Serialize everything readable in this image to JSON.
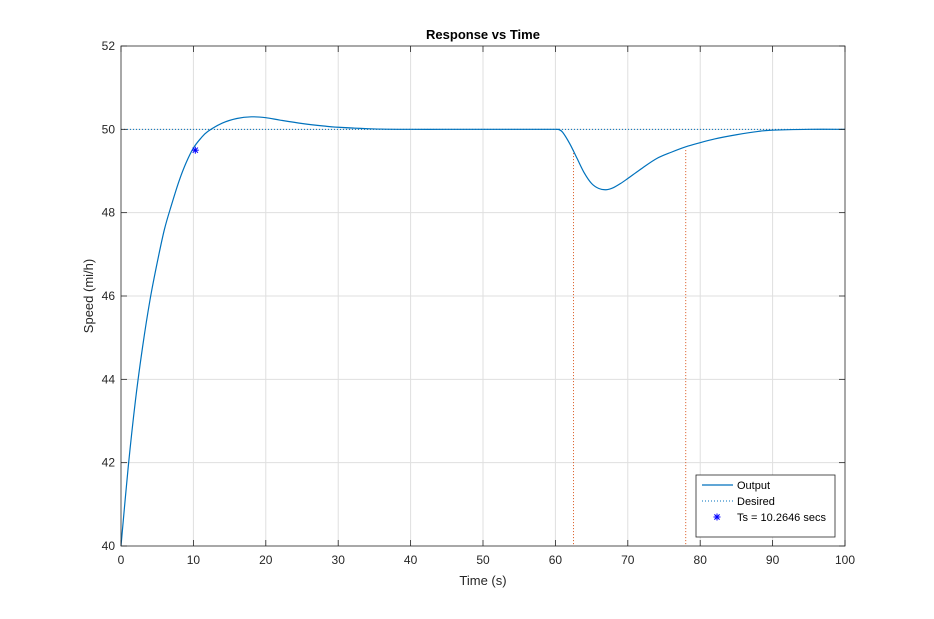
{
  "chart_data": {
    "type": "line",
    "title": "Response vs Time",
    "xlabel": "Time (s)",
    "ylabel": "Speed (mi/h)",
    "xlim": [
      0,
      100
    ],
    "ylim": [
      40,
      52
    ],
    "xticks": [
      0,
      10,
      20,
      30,
      40,
      50,
      60,
      70,
      80,
      90,
      100
    ],
    "yticks": [
      40,
      42,
      44,
      46,
      48,
      50,
      52
    ],
    "grid": true,
    "legend_position": "bottom-right",
    "series": [
      {
        "name": "Output",
        "style": "solid",
        "color": "#0072bd",
        "x": [
          0,
          1,
          2,
          3,
          4,
          5,
          6,
          7,
          8,
          9,
          10,
          11,
          12,
          14,
          16,
          18,
          20,
          22,
          25,
          28,
          30,
          35,
          40,
          45,
          50,
          55,
          60,
          60.5,
          61,
          62,
          63,
          64,
          65,
          66,
          67,
          68,
          69,
          70,
          72,
          74,
          76,
          78,
          80,
          82,
          85,
          88,
          90,
          95,
          100
        ],
        "y": [
          40,
          41.9,
          43.5,
          44.8,
          45.9,
          46.8,
          47.6,
          48.2,
          48.75,
          49.2,
          49.55,
          49.78,
          49.95,
          50.15,
          50.26,
          50.3,
          50.28,
          50.22,
          50.14,
          50.08,
          50.05,
          50.01,
          50,
          50,
          50,
          50,
          50,
          49.99,
          49.93,
          49.65,
          49.3,
          48.95,
          48.7,
          48.58,
          48.55,
          48.6,
          48.7,
          48.82,
          49.07,
          49.3,
          49.45,
          49.58,
          49.68,
          49.77,
          49.87,
          49.95,
          49.98,
          50,
          50
        ]
      },
      {
        "name": "Desired",
        "style": "dotted",
        "color": "#0072bd",
        "x": [
          0,
          100
        ],
        "y": [
          50,
          50
        ]
      },
      {
        "name": "Ts = 10.2646 secs",
        "style": "marker",
        "marker": "*",
        "color": "#0000ff",
        "x": [
          10.2646
        ],
        "y": [
          49.5
        ]
      }
    ],
    "vertical_lines": [
      {
        "x": 62.5,
        "y_top": 49.5,
        "color": "#d95319",
        "style": "dotted"
      },
      {
        "x": 78,
        "y_top": 49.5,
        "color": "#d95319",
        "style": "dotted"
      }
    ]
  }
}
